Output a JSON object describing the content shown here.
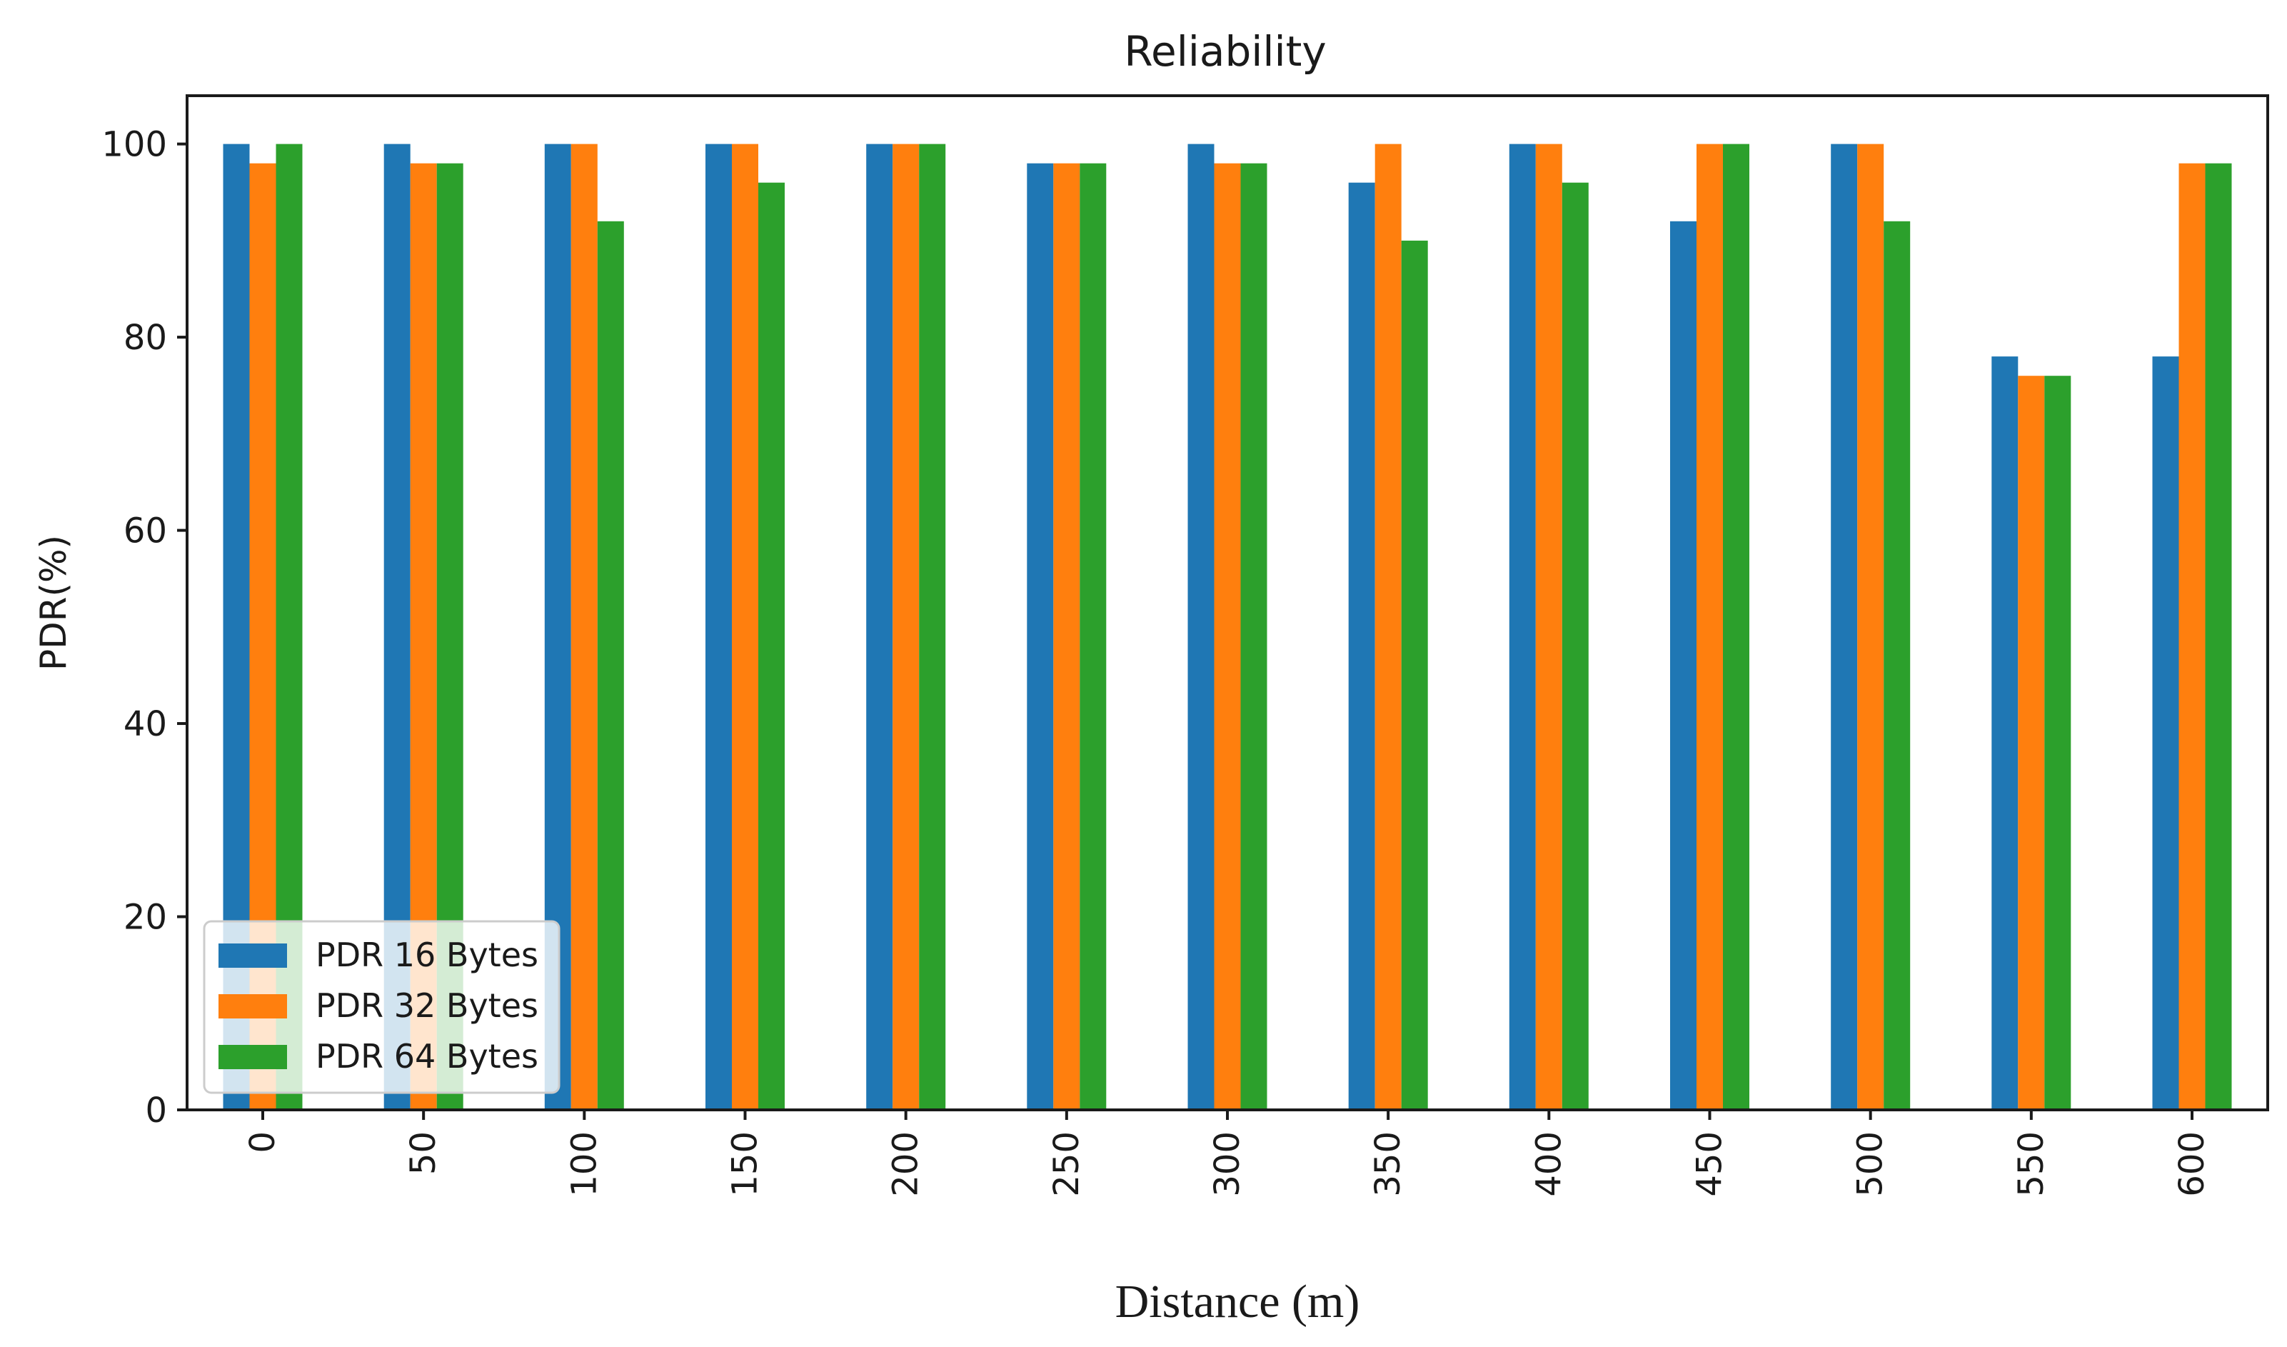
{
  "chart_data": {
    "type": "bar",
    "title": "Reliability",
    "xlabel": "Distance (m)",
    "ylabel": "PDR(%)",
    "categories": [
      "0",
      "50",
      "100",
      "150",
      "200",
      "250",
      "300",
      "350",
      "400",
      "450",
      "500",
      "550",
      "600"
    ],
    "ylim": [
      0,
      105
    ],
    "yticks": [
      "0",
      "20",
      "40",
      "60",
      "80",
      "100"
    ],
    "series": [
      {
        "name": "PDR 16 Bytes",
        "color": "#1f77b4",
        "values": [
          100,
          100,
          100,
          100,
          100,
          98,
          100,
          96,
          100,
          92,
          100,
          78,
          78
        ]
      },
      {
        "name": "PDR 32 Bytes",
        "color": "#ff7f0e",
        "values": [
          98,
          98,
          100,
          100,
          100,
          98,
          98,
          100,
          100,
          100,
          100,
          76,
          98
        ]
      },
      {
        "name": "PDR 64 Bytes",
        "color": "#2ca02c",
        "values": [
          100,
          98,
          92,
          96,
          100,
          98,
          98,
          90,
          96,
          100,
          92,
          76,
          98
        ]
      }
    ],
    "legend_position": "lower-left",
    "grid": false
  }
}
